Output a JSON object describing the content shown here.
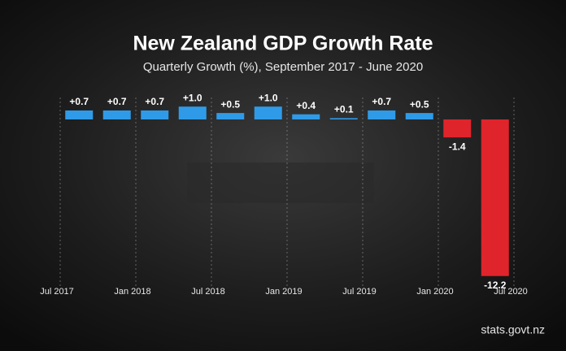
{
  "chart_data": {
    "type": "bar",
    "title": "New Zealand GDP Growth Rate",
    "subtitle": "Quarterly Growth (%), September 2017 - June 2020",
    "categories": [
      null,
      null,
      null,
      null,
      null,
      null,
      null,
      null,
      null,
      null,
      null,
      null
    ],
    "values": [
      0.7,
      0.7,
      0.7,
      1.0,
      0.5,
      1.0,
      0.4,
      0.1,
      0.7,
      0.5,
      -1.4,
      -12.2
    ],
    "value_labels": [
      "+0.7",
      "+0.7",
      "+0.7",
      "+1.0",
      "+0.5",
      "+1.0",
      "+0.4",
      "+0.1",
      "+0.7",
      "+0.5",
      "-1.4",
      "-12.2"
    ],
    "x_axis_labels": [
      "Jul 2017",
      "Jan 2018",
      "Jul 2018",
      "Jan 2019",
      "Jul 2019",
      "Jan 2020",
      "Jul 2020"
    ],
    "positive_color": "#2f9be8",
    "negative_color": "#e0242b",
    "source": "stats.govt.nz"
  }
}
